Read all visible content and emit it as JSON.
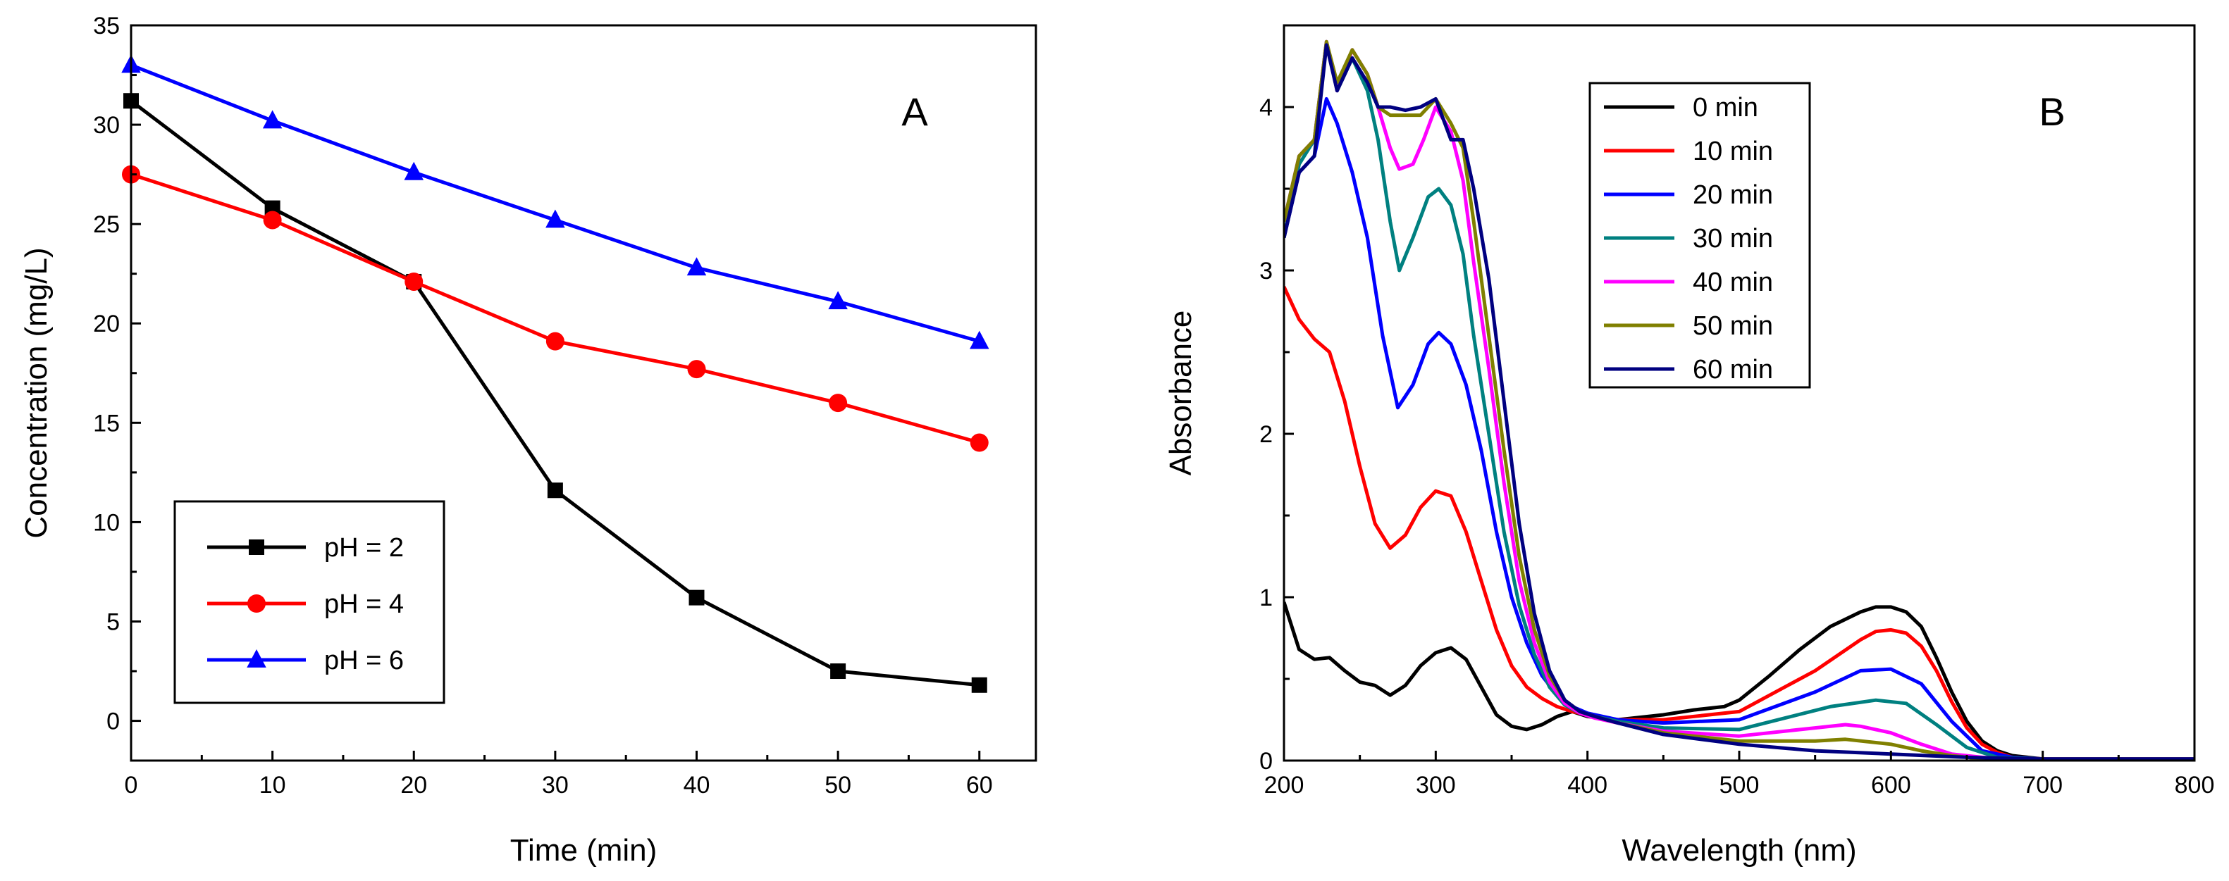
{
  "chart_data": [
    {
      "type": "line",
      "panel_label": "A",
      "xlabel": "Time (min)",
      "ylabel": "Concentration (mg/L)",
      "xlim": [
        0,
        64
      ],
      "ylim": [
        -2,
        35
      ],
      "xticks": [
        0,
        10,
        20,
        30,
        40,
        50,
        60
      ],
      "yticks": [
        0,
        5,
        10,
        15,
        20,
        25,
        30,
        35
      ],
      "legend_position": "bottom-left",
      "series": [
        {
          "name": "pH = 2",
          "color": "#000000",
          "marker": "square",
          "x": [
            0,
            10,
            20,
            30,
            40,
            50,
            60
          ],
          "y": [
            31.2,
            25.8,
            22.1,
            11.6,
            6.2,
            2.5,
            1.8
          ]
        },
        {
          "name": "pH = 4",
          "color": "#ff0000",
          "marker": "circle",
          "x": [
            0,
            10,
            20,
            30,
            40,
            50,
            60
          ],
          "y": [
            27.5,
            25.2,
            22.1,
            19.1,
            17.7,
            16.0,
            14.0
          ]
        },
        {
          "name": "pH = 6",
          "color": "#0000ff",
          "marker": "triangle",
          "x": [
            0,
            10,
            20,
            30,
            40,
            50,
            60
          ],
          "y": [
            33.0,
            30.2,
            27.6,
            25.2,
            22.8,
            21.1,
            19.1
          ]
        }
      ]
    },
    {
      "type": "line",
      "panel_label": "B",
      "xlabel": "Wavelength (nm)",
      "ylabel": "Absorbance",
      "xlim": [
        200,
        800
      ],
      "ylim": [
        0,
        4.5
      ],
      "xticks": [
        200,
        300,
        400,
        500,
        600,
        700,
        800
      ],
      "yticks": [
        0,
        1,
        2,
        3,
        4
      ],
      "legend_position": "top-center",
      "series": [
        {
          "name": "0 min",
          "color": "#000000",
          "x": [
            200,
            210,
            220,
            230,
            240,
            250,
            260,
            270,
            280,
            290,
            300,
            310,
            320,
            330,
            340,
            350,
            360,
            370,
            380,
            390,
            400,
            420,
            450,
            470,
            490,
            500,
            520,
            540,
            560,
            580,
            590,
            600,
            610,
            620,
            630,
            640,
            650,
            660,
            670,
            680,
            700,
            750,
            800
          ],
          "y": [
            0.97,
            0.68,
            0.62,
            0.63,
            0.55,
            0.48,
            0.46,
            0.4,
            0.46,
            0.58,
            0.66,
            0.69,
            0.62,
            0.45,
            0.28,
            0.21,
            0.19,
            0.22,
            0.27,
            0.3,
            0.27,
            0.25,
            0.28,
            0.31,
            0.33,
            0.37,
            0.52,
            0.68,
            0.82,
            0.91,
            0.94,
            0.94,
            0.91,
            0.82,
            0.63,
            0.42,
            0.24,
            0.12,
            0.06,
            0.03,
            0.01,
            0.01,
            0.01
          ]
        },
        {
          "name": "10 min",
          "color": "#ff0000",
          "x": [
            200,
            210,
            220,
            230,
            240,
            250,
            260,
            270,
            280,
            290,
            300,
            310,
            320,
            330,
            340,
            350,
            360,
            370,
            380,
            390,
            400,
            420,
            450,
            500,
            550,
            580,
            590,
            600,
            610,
            620,
            630,
            640,
            650,
            660,
            670,
            680,
            700,
            750,
            800
          ],
          "y": [
            2.9,
            2.7,
            2.58,
            2.5,
            2.2,
            1.8,
            1.45,
            1.3,
            1.38,
            1.55,
            1.65,
            1.62,
            1.4,
            1.1,
            0.8,
            0.58,
            0.45,
            0.38,
            0.33,
            0.3,
            0.28,
            0.25,
            0.25,
            0.3,
            0.55,
            0.74,
            0.79,
            0.8,
            0.78,
            0.7,
            0.55,
            0.36,
            0.2,
            0.1,
            0.05,
            0.02,
            0.01,
            0.01,
            0.01
          ]
        },
        {
          "name": "20 min",
          "color": "#0000ff",
          "x": [
            200,
            210,
            220,
            228,
            235,
            245,
            255,
            265,
            275,
            285,
            295,
            302,
            310,
            320,
            330,
            340,
            350,
            360,
            370,
            380,
            390,
            400,
            420,
            450,
            500,
            550,
            580,
            600,
            620,
            640,
            660,
            680,
            700,
            750,
            800
          ],
          "y": [
            3.2,
            3.6,
            3.7,
            4.05,
            3.9,
            3.6,
            3.2,
            2.6,
            2.16,
            2.3,
            2.55,
            2.62,
            2.55,
            2.3,
            1.9,
            1.4,
            1.0,
            0.72,
            0.52,
            0.4,
            0.33,
            0.29,
            0.25,
            0.23,
            0.25,
            0.42,
            0.55,
            0.56,
            0.47,
            0.24,
            0.06,
            0.02,
            0.01,
            0.01,
            0.01
          ]
        },
        {
          "name": "30 min",
          "color": "#008080",
          "x": [
            200,
            210,
            220,
            228,
            235,
            245,
            255,
            262,
            270,
            276,
            285,
            295,
            302,
            310,
            318,
            325,
            335,
            345,
            355,
            365,
            375,
            385,
            395,
            405,
            420,
            450,
            500,
            560,
            590,
            610,
            630,
            650,
            670,
            700,
            750,
            800
          ],
          "y": [
            3.2,
            3.65,
            3.8,
            4.4,
            4.1,
            4.3,
            4.1,
            3.8,
            3.3,
            3.0,
            3.2,
            3.45,
            3.5,
            3.4,
            3.1,
            2.6,
            2.0,
            1.4,
            0.95,
            0.65,
            0.45,
            0.34,
            0.29,
            0.27,
            0.24,
            0.2,
            0.19,
            0.33,
            0.37,
            0.35,
            0.22,
            0.08,
            0.02,
            0.01,
            0.01,
            0.01
          ]
        },
        {
          "name": "40 min",
          "color": "#ff00ff",
          "x": [
            200,
            210,
            220,
            228,
            235,
            245,
            255,
            262,
            270,
            276,
            285,
            292,
            300,
            310,
            318,
            325,
            335,
            345,
            355,
            365,
            375,
            385,
            395,
            405,
            420,
            450,
            500,
            550,
            570,
            580,
            600,
            620,
            640,
            660,
            680,
            700,
            750,
            800
          ],
          "y": [
            3.3,
            3.7,
            3.8,
            4.4,
            4.1,
            4.35,
            4.2,
            4.0,
            3.75,
            3.62,
            3.65,
            3.8,
            4.0,
            3.85,
            3.55,
            3.05,
            2.4,
            1.7,
            1.1,
            0.72,
            0.48,
            0.35,
            0.29,
            0.26,
            0.23,
            0.18,
            0.15,
            0.2,
            0.22,
            0.21,
            0.17,
            0.1,
            0.04,
            0.02,
            0.01,
            0.01,
            0.01,
            0.01
          ]
        },
        {
          "name": "50 min",
          "color": "#808000",
          "x": [
            200,
            210,
            220,
            228,
            235,
            245,
            255,
            262,
            270,
            280,
            290,
            300,
            310,
            318,
            325,
            335,
            345,
            355,
            365,
            375,
            385,
            395,
            405,
            420,
            450,
            500,
            550,
            570,
            600,
            620,
            640,
            660,
            680,
            700,
            750,
            800
          ],
          "y": [
            3.3,
            3.7,
            3.8,
            4.4,
            4.15,
            4.35,
            4.2,
            4.0,
            3.95,
            3.95,
            3.95,
            4.05,
            3.9,
            3.75,
            3.3,
            2.6,
            1.9,
            1.25,
            0.8,
            0.52,
            0.37,
            0.3,
            0.27,
            0.23,
            0.17,
            0.12,
            0.12,
            0.13,
            0.1,
            0.06,
            0.03,
            0.01,
            0.01,
            0.01,
            0.01,
            0.01
          ]
        },
        {
          "name": "60 min",
          "color": "#000080",
          "x": [
            200,
            210,
            220,
            228,
            235,
            245,
            255,
            262,
            270,
            280,
            290,
            300,
            310,
            318,
            325,
            335,
            345,
            355,
            365,
            375,
            385,
            395,
            405,
            420,
            450,
            500,
            550,
            600,
            650,
            700,
            750,
            800
          ],
          "y": [
            3.2,
            3.6,
            3.7,
            4.38,
            4.1,
            4.3,
            4.15,
            4.0,
            4.0,
            3.98,
            4.0,
            4.05,
            3.8,
            3.8,
            3.5,
            2.95,
            2.2,
            1.45,
            0.9,
            0.55,
            0.37,
            0.3,
            0.27,
            0.23,
            0.16,
            0.1,
            0.06,
            0.04,
            0.02,
            0.01,
            0.01,
            0.01
          ]
        }
      ]
    }
  ]
}
